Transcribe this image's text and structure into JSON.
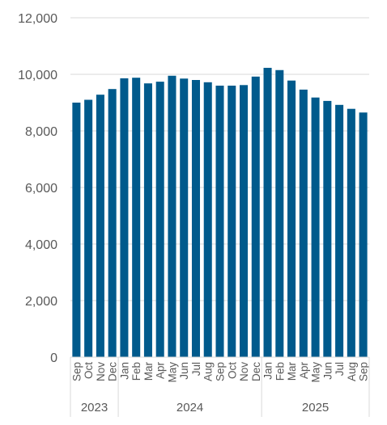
{
  "chart_data": {
    "type": "bar",
    "title": "",
    "xlabel": "",
    "ylabel": "",
    "ylim": [
      0,
      12000
    ],
    "yticks": [
      "0",
      "2,000",
      "4,000",
      "6,000",
      "8,000",
      "10,000",
      "12,000"
    ],
    "grid": true,
    "legend": "none",
    "bar_color": "#005A8C",
    "gridline_color": "#D9D9D9",
    "categories": [
      "Sep",
      "Oct",
      "Nov",
      "Dec",
      "Jan",
      "Feb",
      "Mar",
      "Apr",
      "May",
      "Jun",
      "Jul",
      "Aug",
      "Sep",
      "Oct",
      "Nov",
      "Dec",
      "Jan",
      "Feb",
      "Mar",
      "Apr",
      "May",
      "Jun",
      "Jul",
      "Aug",
      "Sep"
    ],
    "values": [
      9000,
      9100,
      9280,
      9480,
      9860,
      9880,
      9680,
      9740,
      9950,
      9850,
      9800,
      9720,
      9600,
      9600,
      9620,
      9920,
      10230,
      10150,
      9780,
      9460,
      9180,
      9060,
      8920,
      8780,
      8650
    ],
    "year_groups": [
      {
        "label": "2023",
        "count": 4
      },
      {
        "label": "2024",
        "count": 12
      },
      {
        "label": "2025",
        "count": 9
      }
    ]
  }
}
